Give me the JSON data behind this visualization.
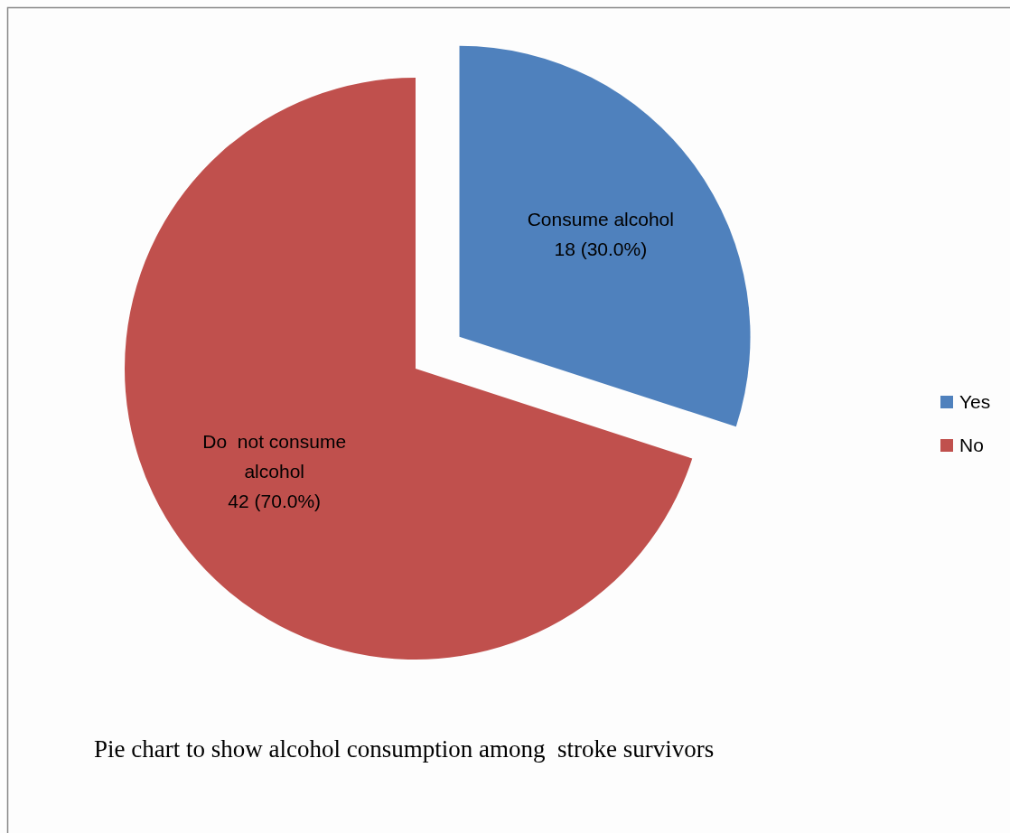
{
  "chart_data": {
    "type": "pie",
    "title": "Pie chart to show alcohol consumption among  stroke survivors",
    "categories": [
      "Yes",
      "No"
    ],
    "values": [
      18,
      42
    ],
    "colors": [
      "#4f81bd",
      "#c0504d"
    ],
    "value_labels": [
      "Consume alcohol\n18 (30.0%)",
      "Do  not consume\nalcohol\n42 (70.0%)"
    ],
    "legend": "right"
  }
}
